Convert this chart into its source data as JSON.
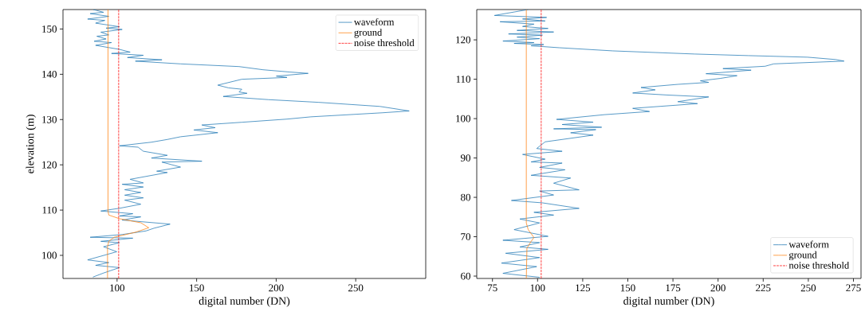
{
  "chart_data": [
    {
      "type": "line",
      "xlabel": "digital number (DN)",
      "ylabel": "elevation (m)",
      "xlim": [
        66,
        294
      ],
      "ylim": [
        94.9,
        154.3
      ],
      "xticks": [
        100,
        150,
        200,
        250
      ],
      "yticks": [
        100,
        110,
        120,
        130,
        140,
        150
      ],
      "legend": "top right",
      "series": [
        {
          "name": "waveform",
          "color": "#1f77b4",
          "line_style": "solid",
          "x": [
            85,
            91.5,
            83.1,
            94.8,
            81.5,
            92.3,
            86.5,
            101.5,
            93.1,
            103.2,
            89.8,
            94.8,
            87.3,
            93.1,
            85.6,
            96.5,
            86.5,
            94.8,
            101.5,
            108.2,
            96.5,
            116.5,
            106.5,
            128.2,
            111.5,
            139.9,
            176.7,
            191.7,
            208.4,
            220.1,
            200.1,
            206.8,
            178.4,
            163.3,
            170,
            178.4,
            176.7,
            181.7,
            166.7,
            195.1,
            226.8,
            265.2,
            283.6,
            266.9,
            221.8,
            206.8,
            178.4,
            153.3,
            161.7,
            148.3,
            163.3,
            139.9,
            131.6,
            121.6,
            101.5,
            113.2,
            116.5,
            131.6,
            121.6,
            153.3,
            128.2,
            139.9,
            124.9,
            131.6,
            108.2,
            116.5,
            103.2,
            116.5,
            104.8,
            114.9,
            104.8,
            116.5,
            104.8,
            114.9,
            101.5,
            89.8,
            109.9,
            101.5,
            114.9,
            103.2,
            133.3,
            123.2,
            118.2,
            103.2,
            83.1,
            109.9,
            89.8,
            101.5,
            91.5,
            99.8,
            81.5,
            94.8,
            86.5,
            101.5,
            91.5,
            84.8
          ],
          "values": [
            154.3,
            153.7,
            153.4,
            152.8,
            152.2,
            151.9,
            151.3,
            150.5,
            150.2,
            149.9,
            149.3,
            148.7,
            148.4,
            147.8,
            147.3,
            147,
            146.4,
            145.9,
            145.5,
            144.9,
            144.6,
            144.2,
            143.7,
            143.2,
            142.9,
            142.3,
            141.7,
            141,
            140.5,
            140.2,
            139.6,
            139.3,
            138.9,
            137.6,
            137,
            136.7,
            136.1,
            135.8,
            135.1,
            134.4,
            133.8,
            132.9,
            131.9,
            131.5,
            130.6,
            130.1,
            129.4,
            128.8,
            128.2,
            127.7,
            127.1,
            126.2,
            125.6,
            125,
            124.2,
            123.9,
            123,
            122.1,
            121.5,
            120.8,
            120.6,
            119.5,
            118.6,
            118.3,
            116.8,
            116,
            115.7,
            115.1,
            114.5,
            113.9,
            113.3,
            112.7,
            112.2,
            111.3,
            110.4,
            109.8,
            109.2,
            108.7,
            108.5,
            107.8,
            106.9,
            106,
            105.4,
            104.6,
            104,
            103.8,
            103.1,
            102.8,
            101.9,
            100.8,
            99,
            98.4,
            97.8,
            97.3,
            96.1,
            95.2
          ]
        },
        {
          "name": "ground",
          "color": "#ff7f0e",
          "line_style": "solid",
          "x": [
            94.3,
            94.3,
            94.8,
            101.5,
            114.9,
            119.9,
            111.5,
            98.2,
            94.8,
            94,
            94
          ],
          "values": [
            154.3,
            109.8,
            108.9,
            108.1,
            107.2,
            106.1,
            105.1,
            104,
            103.1,
            101.9,
            94.9
          ]
        },
        {
          "name": "noise threshold",
          "color": "#ff0000",
          "line_style": "dashed",
          "x": [
            101,
            101
          ],
          "values": [
            94.9,
            154.3
          ]
        }
      ]
    },
    {
      "type": "line",
      "xlabel": "digital number (DN)",
      "xlim": [
        66.3,
        279.2
      ],
      "ylim": [
        59.4,
        127.7
      ],
      "xticks": [
        75,
        100,
        125,
        150,
        175,
        200,
        225,
        250,
        275
      ],
      "yticks": [
        60,
        70,
        80,
        90,
        100,
        110,
        120
      ],
      "legend": "bottom right",
      "series": [
        {
          "name": "waveform",
          "color": "#1f77b4",
          "line_style": "solid",
          "x": [
            94.8,
            76.1,
            105,
            91.7,
            104.2,
            79.2,
            98,
            91.7,
            105.8,
            88.6,
            108.9,
            83.9,
            102.7,
            88.6,
            101.1,
            80.8,
            98,
            87,
            103.4,
            96.4,
            112,
            141.7,
            187,
            216.7,
            249.5,
            265.2,
            269.8,
            230.8,
            226.1,
            202.7,
            218.3,
            193.3,
            210.5,
            201.1,
            190.2,
            194.8,
            177.7,
            157.3,
            165.2,
            152.7,
            171.4,
            194.8,
            177.7,
            188.6,
            152.7,
            162,
            137,
            110.5,
            130.8,
            113.6,
            135.5,
            108.9,
            132.3,
            118.3,
            130.8,
            104.2,
            99.5,
            113.6,
            91.7,
            104.2,
            96.4,
            113.6,
            101.1,
            115.2,
            96.4,
            118.3,
            108.9,
            123,
            101.1,
            108.9,
            85.5,
            102.7,
            123,
            98,
            108.9,
            90.2,
            101.1,
            87,
            105.8,
            80.8,
            101.1,
            90.2,
            105.8,
            82.3,
            101.1,
            80,
            99.5,
            80.8,
            101.1
          ],
          "values": [
            127.7,
            126.2,
            125.7,
            125.3,
            124.8,
            124.6,
            124,
            123.4,
            122.9,
            122.4,
            122,
            121.5,
            121.2,
            120.7,
            120.3,
            119.7,
            119.3,
            119.1,
            118.8,
            118.5,
            118,
            117.2,
            116.4,
            116,
            115.6,
            115,
            114.6,
            113.9,
            113.3,
            112.7,
            112.3,
            111.4,
            110.9,
            110.2,
            109.6,
            109.2,
            108.7,
            107.9,
            107.3,
            106.5,
            106,
            105.5,
            104.3,
            103.8,
            102.6,
            101.8,
            101,
            99.8,
            99.1,
            98.5,
            97.8,
            97.4,
            97.2,
            96.4,
            95.8,
            94.1,
            92.4,
            91.7,
            90.9,
            89.7,
            89,
            88.7,
            87.6,
            87,
            85.6,
            84.9,
            83.6,
            81.9,
            81.6,
            80.6,
            79.2,
            78.6,
            77.2,
            76.2,
            75.5,
            74.5,
            73.5,
            71.8,
            70.1,
            69.1,
            68.5,
            67.4,
            66.8,
            65.8,
            64.7,
            63.3,
            62.4,
            60.7,
            59.7
          ]
        },
        {
          "name": "ground",
          "color": "#ff7f0e",
          "line_style": "solid",
          "x": [
            93.75,
            93.75,
            94.8,
            98,
            96.4,
            94.1,
            93.75
          ],
          "values": [
            127.7,
            73.5,
            71.8,
            69.8,
            68.8,
            67.1,
            59.4
          ]
        },
        {
          "name": "noise threshold",
          "color": "#ff0000",
          "line_style": "dashed",
          "x": [
            102,
            102
          ],
          "values": [
            59.4,
            127.7
          ]
        }
      ]
    }
  ]
}
